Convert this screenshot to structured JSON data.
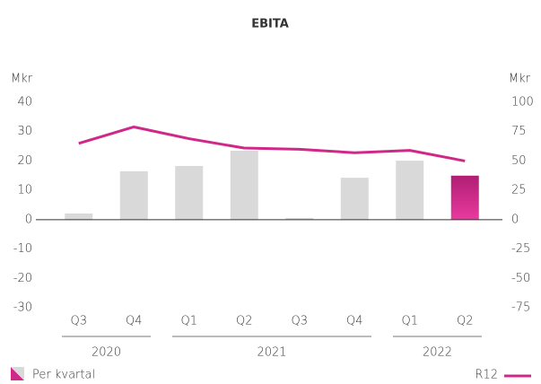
{
  "chart_data": {
    "type": "bar_line",
    "title": "EBITA",
    "y_label": "Mkr",
    "y2_label": "Mkr",
    "categories": [
      "Q3",
      "Q4",
      "Q1",
      "Q2",
      "Q3",
      "Q4",
      "Q1",
      "Q2"
    ],
    "years": [
      "2020",
      "2020",
      "2021",
      "2021",
      "2021",
      "2021",
      "2022",
      "2022"
    ],
    "series": [
      {
        "name": "Per kvartal",
        "type": "bar",
        "colors": [
          "#d9d9d9",
          "#d9d9d9",
          "#d9d9d9",
          "#d9d9d9",
          "#d9d9d9",
          "#d9d9d9",
          "#d9d9d9",
          "#d6248a"
        ],
        "values": [
          2.1,
          16.5,
          18.3,
          23.5,
          0.6,
          14.3,
          20.1,
          15
        ]
      },
      {
        "name": "R12",
        "type": "line",
        "axis": "y2",
        "color": "#d02888",
        "values": [
          65,
          79,
          69,
          61,
          60,
          57,
          59,
          50
        ]
      }
    ],
    "ylim": [
      -30,
      40
    ],
    "yticks": [
      -30,
      -20,
      -10,
      0,
      10,
      20,
      30,
      40
    ],
    "y2lim": [
      -75,
      100
    ],
    "y2ticks": [
      -75,
      -50,
      -25,
      0,
      25,
      50,
      75,
      100
    ]
  }
}
